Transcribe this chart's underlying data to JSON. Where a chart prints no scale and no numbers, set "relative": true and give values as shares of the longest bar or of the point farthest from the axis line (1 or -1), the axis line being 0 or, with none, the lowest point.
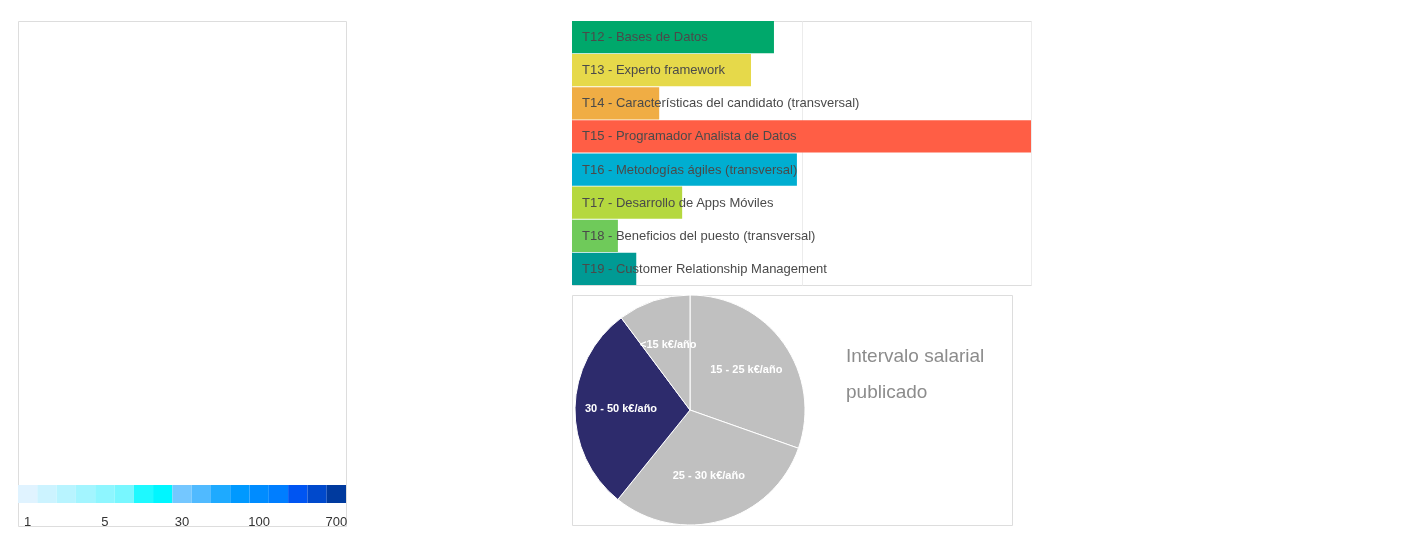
{
  "chart_data": [
    {
      "type": "other",
      "colors": [
        "#e0f3ff",
        "#ccf3ff",
        "#b8f4ff",
        "#a3f5ff",
        "#8ef6ff",
        "#78f7ff",
        "#1ef9ff",
        "#00f6ff",
        "#74c7ff",
        "#50baff",
        "#1eaaff",
        "#0099ff",
        "#008cff",
        "#007eff",
        "#0055f2",
        "#0049cc",
        "#003a9e"
      ],
      "annotations": [
        "1",
        "5",
        "30",
        "100",
        "700"
      ]
    },
    {
      "type": "bar",
      "orientation": "horizontal",
      "relative": true,
      "categories": [
        "T12 - Bases de Datos",
        "T13 - Experto framework",
        "T14 - Características del candidato (transversal)",
        "T15 - Programador Analista de Datos",
        "T16 - Metodogías ágiles (transversal)",
        "T17 - Desarrollo de Apps Móviles",
        "T18 - Beneficios del puesto (transversal)",
        "T19 - Customer Relationship Management"
      ],
      "values": [
        0.44,
        0.39,
        0.19,
        1,
        0.49,
        0.24,
        0.1,
        0.14
      ],
      "colors": [
        "#00a86b",
        "#e6d94a",
        "#f0ad44",
        "#ff5e45",
        "#00aed1",
        "#b5d83f",
        "#6fca5a",
        "#009a94"
      ],
      "grid": "x"
    },
    {
      "type": "pie",
      "title": "Intervalo salarial publicado",
      "categories": [
        "15 - 25 k€/año",
        "25 - 30 k€/año",
        "30 - 50 k€/año",
        "<15 k€/año"
      ],
      "values": [
        30.4,
        30.4,
        29.0,
        10.2
      ],
      "colors": [
        "#c0c0c0",
        "#c0c0c0",
        "#2d2b6c",
        "#c0c0c0"
      ]
    }
  ]
}
